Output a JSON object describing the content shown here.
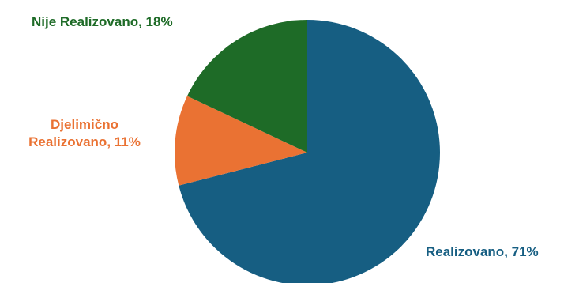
{
  "chart_data": {
    "type": "pie",
    "start": "12 o'clock, clockwise",
    "slices": [
      {
        "label": "Realizovano, 71%",
        "value": 71,
        "color": "#165E82"
      },
      {
        "label": "Djelimično Realizovano, 11%",
        "label_lines": [
          "Djelimično",
          "Realizovano, 11%"
        ],
        "value": 11,
        "color": "#EA7233"
      },
      {
        "label": "Nije Realizovano, 18%",
        "value": 18,
        "color": "#1E6B27"
      }
    ],
    "legend": "none (data labels outside slices)"
  }
}
